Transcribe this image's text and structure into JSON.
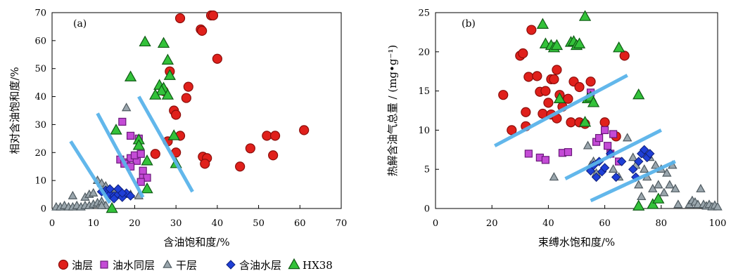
{
  "series_styles": [
    {
      "name": "油层",
      "marker": "circle",
      "fill": "#e0201b",
      "stroke": "#8a0d0a"
    },
    {
      "name": "油水同层",
      "marker": "square",
      "fill": "#c44bd6",
      "stroke": "#6a1a7a"
    },
    {
      "name": "干层",
      "marker": "triangle",
      "fill": "#9aa6ad",
      "stroke": "#4f5a60"
    },
    {
      "name": "含油水层",
      "marker": "diamond",
      "fill": "#1f3fd6",
      "stroke": "#0d1f7a"
    },
    {
      "name": "HX38",
      "marker": "triangle",
      "fill": "#33c23a",
      "stroke": "#0f5a14"
    }
  ],
  "guide_line_color": "#5ab4ea",
  "chart_data": [
    {
      "type": "scatter",
      "panel_label": "(a)",
      "xlabel": "含油饱和度/%",
      "ylabel": "相对含油饱和度/%",
      "xlim": [
        0,
        70
      ],
      "ylim": [
        0,
        70
      ],
      "xticks": [
        0,
        10,
        20,
        30,
        40,
        50,
        60,
        70
      ],
      "yticks": [
        0,
        10,
        20,
        30,
        40,
        50,
        60,
        70
      ],
      "grid": false,
      "series": [
        {
          "name": "油层",
          "points": [
            [
              31,
              68
            ],
            [
              38.5,
              69
            ],
            [
              39,
              69
            ],
            [
              36,
              64
            ],
            [
              36.3,
              63.5
            ],
            [
              40,
              53.5
            ],
            [
              28.5,
              49
            ],
            [
              33,
              43.5
            ],
            [
              27,
              42
            ],
            [
              32.5,
              39.5
            ],
            [
              29.5,
              35
            ],
            [
              30,
              33.5
            ],
            [
              31,
              26
            ],
            [
              28,
              24
            ],
            [
              25,
              19.5
            ],
            [
              30,
              20
            ],
            [
              36.5,
              18.5
            ],
            [
              37.5,
              18
            ],
            [
              37,
              16
            ],
            [
              45.5,
              15
            ],
            [
              48,
              21.5
            ],
            [
              52,
              26
            ],
            [
              54,
              26
            ],
            [
              53.5,
              19
            ],
            [
              61,
              28
            ]
          ]
        },
        {
          "name": "油水同层",
          "points": [
            [
              17,
              31
            ],
            [
              19,
              26
            ],
            [
              21,
              25
            ],
            [
              16.5,
              17.5
            ],
            [
              18,
              16.5
            ],
            [
              19,
              18
            ],
            [
              20.5,
              17
            ],
            [
              20,
              19
            ],
            [
              21.5,
              19.5
            ],
            [
              22,
              13.5
            ],
            [
              22,
              11
            ],
            [
              23,
              11
            ],
            [
              21.5,
              9.5
            ],
            [
              17.5,
              16
            ],
            [
              19,
              15
            ]
          ]
        },
        {
          "name": "干层",
          "points": [
            [
              1,
              0.5
            ],
            [
              2,
              0.5
            ],
            [
              3,
              1
            ],
            [
              4,
              0.5
            ],
            [
              5,
              0.5
            ],
            [
              6,
              1
            ],
            [
              7,
              0.5
            ],
            [
              8,
              1
            ],
            [
              9,
              1
            ],
            [
              10,
              1.5
            ],
            [
              11,
              2
            ],
            [
              12,
              2.5
            ],
            [
              5,
              4.5
            ],
            [
              8,
              4
            ],
            [
              9,
              5
            ],
            [
              10,
              5.5
            ],
            [
              11,
              10
            ],
            [
              12,
              9
            ],
            [
              13,
              8
            ],
            [
              14,
              6
            ],
            [
              15,
              5.5
            ],
            [
              17,
              5
            ],
            [
              18,
              36
            ],
            [
              19,
              5
            ],
            [
              21,
              4.5
            ],
            [
              13,
              1
            ],
            [
              12,
              1
            ]
          ]
        },
        {
          "name": "含油水层",
          "points": [
            [
              13,
              6.5
            ],
            [
              14,
              5
            ],
            [
              15,
              4.5
            ],
            [
              16,
              5
            ],
            [
              17,
              4
            ],
            [
              18,
              5.5
            ],
            [
              19,
              4.5
            ],
            [
              12,
              6
            ],
            [
              14,
              7
            ],
            [
              15,
              3.5
            ],
            [
              16,
              7
            ],
            [
              17,
              5.5
            ]
          ]
        },
        {
          "name": "HX38",
          "points": [
            [
              22.5,
              59.5
            ],
            [
              27,
              59
            ],
            [
              28,
              53
            ],
            [
              28.5,
              47.5
            ],
            [
              19,
              47
            ],
            [
              26,
              44
            ],
            [
              27,
              43
            ],
            [
              26.5,
              42
            ],
            [
              25,
              40.5
            ],
            [
              28,
              40.5
            ],
            [
              29.5,
              26
            ],
            [
              15.5,
              28
            ],
            [
              21,
              24.5
            ],
            [
              21,
              22.5
            ],
            [
              23,
              17
            ],
            [
              23,
              7
            ],
            [
              30,
              16
            ],
            [
              14.5,
              0
            ]
          ]
        }
      ],
      "lines": [
        [
          [
            4.5,
            24
          ],
          [
            14,
            2
          ]
        ],
        [
          [
            11,
            34
          ],
          [
            22,
            4
          ]
        ],
        [
          [
            21,
            40
          ],
          [
            34,
            6
          ]
        ]
      ]
    },
    {
      "type": "scatter",
      "panel_label": "(b)",
      "xlabel": "束缚水饱和度/%",
      "ylabel": "热解含油气总量 / (mg•g⁻¹)",
      "xlim": [
        0,
        100
      ],
      "ylim": [
        0,
        25
      ],
      "xticks": [
        0,
        20,
        40,
        60,
        80,
        100
      ],
      "yticks": [
        0,
        5,
        10,
        15,
        20,
        25
      ],
      "grid": false,
      "series": [
        {
          "name": "油层",
          "points": [
            [
              24,
              14.5
            ],
            [
              27,
              10
            ],
            [
              30,
              19.5
            ],
            [
              31,
              19.8
            ],
            [
              32,
              12.3
            ],
            [
              32,
              10.5
            ],
            [
              33,
              16.8
            ],
            [
              34,
              22.8
            ],
            [
              36,
              16.9
            ],
            [
              37,
              14.9
            ],
            [
              38,
              12.1
            ],
            [
              39,
              15
            ],
            [
              40,
              13.5
            ],
            [
              41,
              16.5
            ],
            [
              41,
              12
            ],
            [
              42,
              16.5
            ],
            [
              43,
              17.7
            ],
            [
              43,
              11.5
            ],
            [
              44,
              14.5
            ],
            [
              45,
              13
            ],
            [
              47,
              14
            ],
            [
              48,
              11
            ],
            [
              49,
              16.2
            ],
            [
              51,
              15.5
            ],
            [
              51,
              11
            ],
            [
              53,
              10.8
            ],
            [
              55,
              16.2
            ],
            [
              60,
              11
            ],
            [
              64,
              9.2
            ],
            [
              67,
              19.5
            ]
          ]
        },
        {
          "name": "油水同层",
          "points": [
            [
              33,
              7
            ],
            [
              37,
              6.5
            ],
            [
              39,
              6.2
            ],
            [
              45,
              7.1
            ],
            [
              47,
              7.2
            ],
            [
              55,
              14.8
            ],
            [
              57,
              8.5
            ],
            [
              58,
              9
            ],
            [
              60,
              10
            ],
            [
              61,
              8
            ],
            [
              62,
              7
            ],
            [
              63,
              9.5
            ],
            [
              65,
              6
            ]
          ]
        },
        {
          "name": "干层",
          "points": [
            [
              42,
              4
            ],
            [
              54,
              8
            ],
            [
              55,
              5.5
            ],
            [
              56,
              6
            ],
            [
              57,
              4.5
            ],
            [
              63,
              5
            ],
            [
              65,
              4
            ],
            [
              68,
              9
            ],
            [
              70,
              6.5
            ],
            [
              71,
              5.5
            ],
            [
              72,
              3
            ],
            [
              73,
              1.5
            ],
            [
              74,
              5
            ],
            [
              75,
              4
            ],
            [
              76,
              6.5
            ],
            [
              77,
              2.5
            ],
            [
              78,
              5.5
            ],
            [
              79,
              3
            ],
            [
              80,
              5
            ],
            [
              81,
              2
            ],
            [
              82,
              4.5
            ],
            [
              83,
              3
            ],
            [
              84,
              5.5
            ],
            [
              85,
              2.5
            ],
            [
              86,
              0.5
            ],
            [
              90,
              0.5
            ],
            [
              91,
              1
            ],
            [
              92,
              0.8
            ],
            [
              93,
              0.5
            ],
            [
              94,
              2.5
            ],
            [
              95,
              0.5
            ],
            [
              96,
              0.3
            ],
            [
              97,
              0.5
            ],
            [
              98,
              0.2
            ],
            [
              99,
              0.4
            ],
            [
              100,
              0.2
            ]
          ]
        },
        {
          "name": "含油水层",
          "points": [
            [
              55,
              4.8
            ],
            [
              56,
              5.5
            ],
            [
              57,
              4
            ],
            [
              58,
              6
            ],
            [
              59,
              4.7
            ],
            [
              60,
              5.2
            ],
            [
              62,
              7
            ],
            [
              64,
              4
            ],
            [
              66,
              6
            ],
            [
              70,
              5
            ],
            [
              72,
              6
            ],
            [
              73,
              7
            ],
            [
              74,
              7.5
            ],
            [
              75,
              6.5
            ],
            [
              76,
              7
            ],
            [
              71,
              4
            ]
          ]
        },
        {
          "name": "HX38",
          "points": [
            [
              38,
              23.5
            ],
            [
              39,
              21
            ],
            [
              41,
              20.8
            ],
            [
              42,
              20.5
            ],
            [
              43,
              20.8
            ],
            [
              44,
              14
            ],
            [
              48,
              21.2
            ],
            [
              49,
              21.3
            ],
            [
              50,
              20.8
            ],
            [
              51,
              21
            ],
            [
              53,
              24.5
            ],
            [
              54,
              14
            ],
            [
              55,
              14.2
            ],
            [
              56,
              13.5
            ],
            [
              53,
              11
            ],
            [
              65,
              20.5
            ],
            [
              72,
              14.5
            ],
            [
              72,
              0.3
            ],
            [
              77,
              0.5
            ],
            [
              79,
              1.2
            ]
          ]
        }
      ],
      "lines": [
        [
          [
            21,
            8
          ],
          [
            68,
            17
          ]
        ],
        [
          [
            46,
            3.8
          ],
          [
            80,
            10
          ]
        ],
        [
          [
            55,
            1
          ],
          [
            85,
            6
          ]
        ]
      ]
    }
  ]
}
